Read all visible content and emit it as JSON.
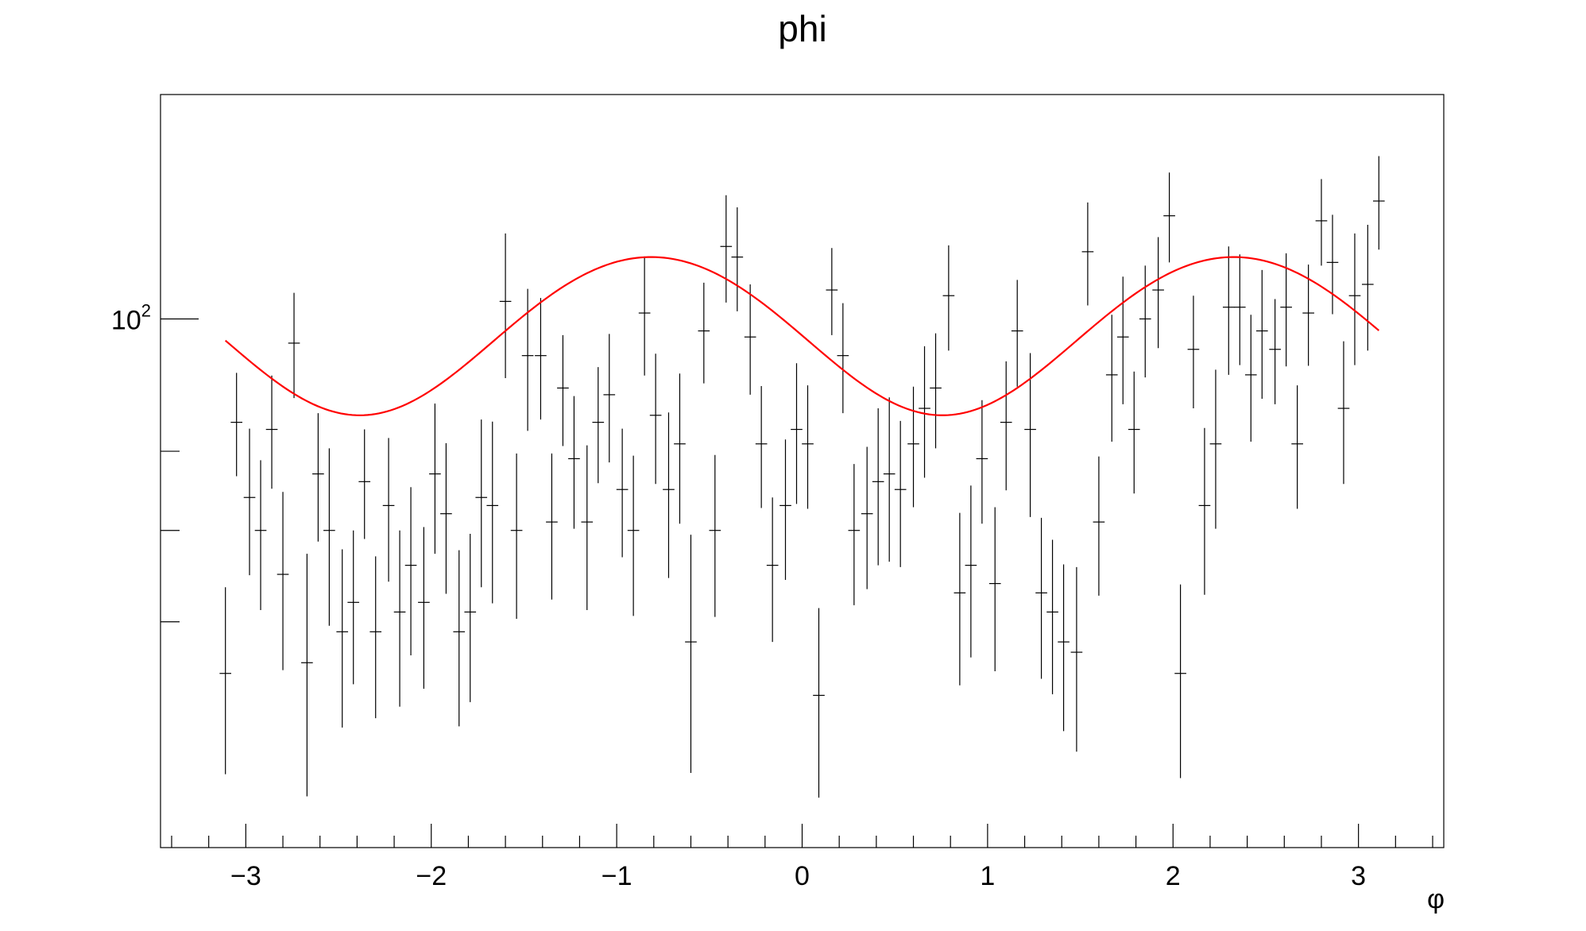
{
  "chart_data": {
    "type": "scatter",
    "title": "phi",
    "xlabel": "φ",
    "ylabel": "",
    "xlim": [
      -3.46,
      3.46
    ],
    "ylim": [
      41,
      146
    ],
    "y_scale": "log",
    "grid": false,
    "legend": "none",
    "x_ticks": [
      {
        "value": -3,
        "label": "−3"
      },
      {
        "value": -2,
        "label": "−2"
      },
      {
        "value": -1,
        "label": "−1"
      },
      {
        "value": 0,
        "label": "0"
      },
      {
        "value": 1,
        "label": "1"
      },
      {
        "value": 2,
        "label": "2"
      },
      {
        "value": 3,
        "label": "3"
      }
    ],
    "y_tick_label": {
      "base": "10",
      "exponent": "2",
      "value": 100
    },
    "y_ticks_unlabeled": [
      80,
      70,
      60
    ],
    "series": [
      {
        "kind": "histogram-errorbars",
        "color": "#000000",
        "bin_width": 0.0628,
        "x": [
          -3.11,
          -3.05,
          -2.98,
          -2.92,
          -2.86,
          -2.8,
          -2.74,
          -2.67,
          -2.61,
          -2.55,
          -2.48,
          -2.42,
          -2.36,
          -2.3,
          -2.23,
          -2.17,
          -2.11,
          -2.04,
          -1.98,
          -1.92,
          -1.85,
          -1.79,
          -1.73,
          -1.67,
          -1.6,
          -1.54,
          -1.48,
          -1.41,
          -1.35,
          -1.29,
          -1.23,
          -1.16,
          -1.1,
          -1.04,
          -0.97,
          -0.91,
          -0.85,
          -0.79,
          -0.72,
          -0.66,
          -0.6,
          -0.53,
          -0.47,
          -0.41,
          -0.35,
          -0.28,
          -0.22,
          -0.16,
          -0.09,
          -0.03,
          0.03,
          0.09,
          0.16,
          0.22,
          0.28,
          0.35,
          0.41,
          0.47,
          0.53,
          0.6,
          0.66,
          0.72,
          0.79,
          0.85,
          0.91,
          0.97,
          1.04,
          1.1,
          1.16,
          1.23,
          1.29,
          1.35,
          1.41,
          1.48,
          1.54,
          1.6,
          1.67,
          1.73,
          1.79,
          1.85,
          1.92,
          1.98,
          2.04,
          2.11,
          2.17,
          2.23,
          2.3,
          2.36,
          2.42,
          2.48,
          2.55,
          2.61,
          2.67,
          2.73,
          2.8,
          2.86,
          2.92,
          2.98,
          3.05,
          3.11
        ],
        "y": [
          55,
          84,
          74,
          70,
          83,
          65,
          96,
          56,
          77,
          70,
          59,
          62,
          76,
          59,
          73,
          61,
          66,
          62,
          77,
          72,
          59,
          61,
          74,
          73,
          103,
          70,
          94,
          94,
          71,
          89,
          79,
          71,
          84,
          88,
          75,
          70,
          101,
          85,
          75,
          81,
          58,
          98,
          70,
          113,
          111,
          97,
          81,
          66,
          73,
          83,
          81,
          53,
          105,
          94,
          70,
          72,
          76,
          77,
          75,
          81,
          86,
          89,
          104,
          63,
          66,
          79,
          64,
          84,
          98,
          83,
          63,
          61,
          58,
          57,
          112,
          71,
          91,
          97,
          83,
          100,
          105,
          119,
          55,
          95,
          73,
          81,
          102,
          102,
          91,
          98,
          95,
          102,
          81,
          101,
          118,
          110,
          86,
          104,
          106,
          122
        ],
        "err": [
          8.6,
          7.3,
          9.1,
          8.8,
          7.9,
          9.7,
          8.5,
          11.3,
          8.3,
          10.4,
          8.8,
          8.0,
          7.0,
          8.0,
          8.8,
          9.0,
          9.3,
          8.4,
          9.7,
          9.1,
          8.7,
          8.6,
          10.4,
          11.1,
          12.5,
          9.7,
          11.2,
          9.6,
          8.7,
          8.3,
          8.8,
          9.8,
          8.2,
          9.5,
          8.1,
          9.4,
          10.1,
          9.3,
          10.4,
          10.2,
          11.5,
          8.3,
          9.5,
          10.2,
          9.7,
          9.0,
          8.3,
          8.0,
          8.6,
          9.8,
          8.4,
          8.4,
          7.7,
          8.7,
          8.3,
          8.6,
          10.0,
          10.6,
          9.2,
          8.2,
          9.5,
          8.6,
          9.2,
          9.1,
          9.5,
          8.2,
          8.8,
          9.1,
          8.8,
          11.4,
          8.5,
          7.9,
          8.1,
          8.8,
          9.7,
          8.3,
          9.7,
          10.4,
          8.5,
          9.4,
          9.8,
          9.0,
          8.9,
          9.0,
          10.2,
          10.8,
          11.0,
          9.5,
          9.7,
          10.6,
          8.4,
          9.7,
          8.4,
          8.6,
          8.6,
          9.2,
          10.3,
          11.5,
          11.2,
          9.6
        ]
      },
      {
        "kind": "fit-curve",
        "color": "#ff0000",
        "model": "p0 + p1*sin(2*phi + p2)",
        "params": {
          "p0": 98,
          "p1": 13,
          "p2": 3.2
        }
      }
    ]
  }
}
